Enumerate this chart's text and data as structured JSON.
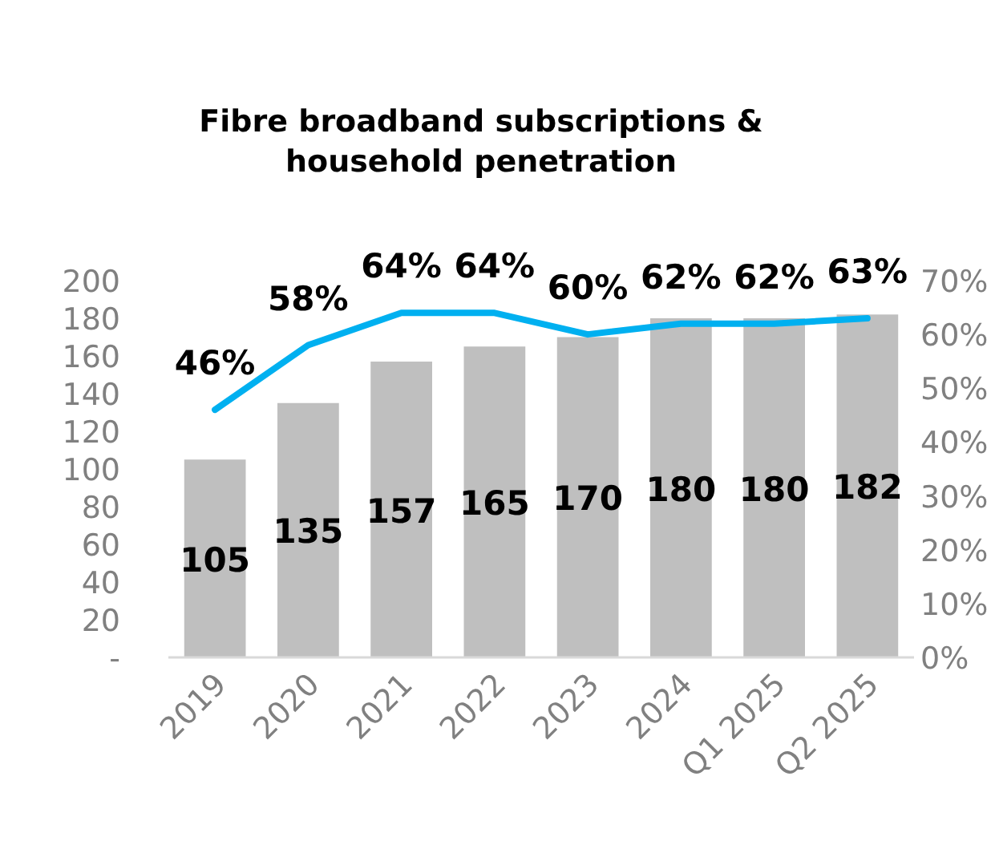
{
  "chart_data": {
    "type": "bar",
    "title": "Fibre broadband subscriptions & household penetration",
    "categories": [
      "2019",
      "2020",
      "2021",
      "2022",
      "2023",
      "2024",
      "Q1 2025",
      "Q2 2025"
    ],
    "series": [
      {
        "color": "#bfbfbf",
        "values": [
          105,
          135,
          157,
          165,
          170,
          180,
          180,
          182
        ],
        "value_labels": [
          "105",
          "135",
          "157",
          "165",
          "170",
          "180",
          "180",
          "182"
        ]
      },
      {
        "type": "line",
        "axis": "y2",
        "color": "#00b0f0",
        "values": [
          46,
          58,
          64,
          64,
          60,
          62,
          62,
          63
        ],
        "value_labels": [
          "46%",
          "58%",
          "64%",
          "64%",
          "60%",
          "62%",
          "62%",
          "63%"
        ]
      }
    ],
    "ylim": [
      0,
      200
    ],
    "yticks": [
      {
        "value": 0,
        "label": "-"
      },
      20,
      40,
      60,
      80,
      100,
      120,
      140,
      160,
      180,
      200
    ],
    "y2lim": [
      0,
      70
    ],
    "y2ticks": [
      {
        "value": 0,
        "label": "0%"
      },
      {
        "value": 10,
        "label": "10%"
      },
      {
        "value": 20,
        "label": "20%"
      },
      {
        "value": 30,
        "label": "30%"
      },
      {
        "value": 40,
        "label": "40%"
      },
      {
        "value": 50,
        "label": "50%"
      },
      {
        "value": 60,
        "label": "60%"
      },
      {
        "value": 70,
        "label": "70%"
      }
    ],
    "grid": false
  }
}
